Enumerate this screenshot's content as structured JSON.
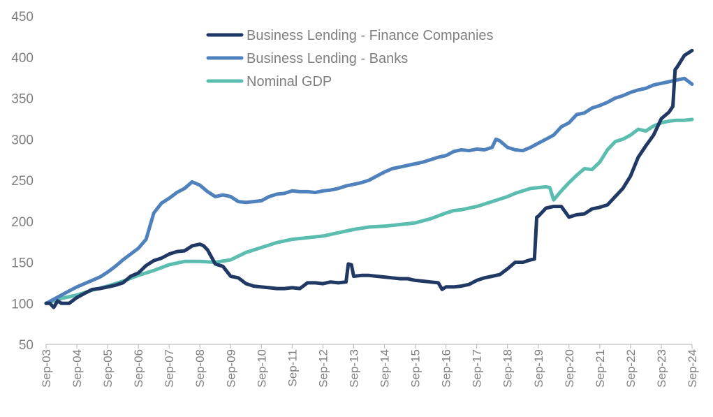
{
  "chart_data": {
    "type": "line",
    "title": "",
    "xlabel": "",
    "ylabel": "",
    "ylim": [
      50,
      450
    ],
    "yticks": [
      50,
      100,
      150,
      200,
      250,
      300,
      350,
      400,
      450
    ],
    "xlim": [
      0,
      84
    ],
    "x_ticks": [
      {
        "label": "Sep-03",
        "x": 0
      },
      {
        "label": "Sep-04",
        "x": 4
      },
      {
        "label": "Sep-05",
        "x": 8
      },
      {
        "label": "Sep-06",
        "x": 12
      },
      {
        "label": "Sep-07",
        "x": 16
      },
      {
        "label": "Sep-08",
        "x": 20
      },
      {
        "label": "Sep-09",
        "x": 24
      },
      {
        "label": "Sep-10",
        "x": 28
      },
      {
        "label": "Sep-11",
        "x": 32
      },
      {
        "label": "Sep-12",
        "x": 36
      },
      {
        "label": "Sep-13",
        "x": 40
      },
      {
        "label": "Sep-14",
        "x": 44
      },
      {
        "label": "Sep-15",
        "x": 48
      },
      {
        "label": "Sep-16",
        "x": 52
      },
      {
        "label": "Sep-17",
        "x": 56
      },
      {
        "label": "Sep-18",
        "x": 60
      },
      {
        "label": "Sep-19",
        "x": 64
      },
      {
        "label": "Sep-20",
        "x": 68
      },
      {
        "label": "Sep-21",
        "x": 72
      },
      {
        "label": "Sep-22",
        "x": 76
      },
      {
        "label": "Sep-23",
        "x": 80
      },
      {
        "label": "Sep-24",
        "x": 84
      }
    ],
    "legend_position": "top-center",
    "series": [
      {
        "name": "Business Lending - Finance Companies",
        "color": "#1f3864",
        "points": [
          [
            0,
            100
          ],
          [
            0.5,
            100
          ],
          [
            1,
            95
          ],
          [
            1.5,
            103
          ],
          [
            2,
            100
          ],
          [
            3,
            100
          ],
          [
            4,
            107
          ],
          [
            5,
            112
          ],
          [
            6,
            117
          ],
          [
            7,
            118
          ],
          [
            8,
            120
          ],
          [
            9,
            122
          ],
          [
            10,
            125
          ],
          [
            11,
            133
          ],
          [
            12,
            137
          ],
          [
            13,
            146
          ],
          [
            14,
            152
          ],
          [
            15,
            155
          ],
          [
            16,
            160
          ],
          [
            17,
            163
          ],
          [
            18,
            164
          ],
          [
            19,
            170
          ],
          [
            20,
            172
          ],
          [
            20.5,
            170
          ],
          [
            21,
            165
          ],
          [
            22,
            148
          ],
          [
            23,
            145
          ],
          [
            24,
            133
          ],
          [
            25,
            131
          ],
          [
            26,
            124
          ],
          [
            27,
            121
          ],
          [
            28,
            120
          ],
          [
            29,
            119
          ],
          [
            30,
            118
          ],
          [
            31,
            118
          ],
          [
            32,
            119
          ],
          [
            33,
            118
          ],
          [
            34,
            125
          ],
          [
            35,
            125
          ],
          [
            36,
            124
          ],
          [
            37,
            126
          ],
          [
            38,
            125
          ],
          [
            39,
            126
          ],
          [
            39.3,
            148
          ],
          [
            39.7,
            147
          ],
          [
            40,
            133
          ],
          [
            41,
            134
          ],
          [
            42,
            134
          ],
          [
            43,
            133
          ],
          [
            44,
            132
          ],
          [
            45,
            131
          ],
          [
            46,
            130
          ],
          [
            47,
            130
          ],
          [
            48,
            128
          ],
          [
            49,
            127
          ],
          [
            50,
            126
          ],
          [
            51,
            125
          ],
          [
            51.5,
            117
          ],
          [
            52,
            120
          ],
          [
            53,
            120
          ],
          [
            54,
            121
          ],
          [
            55,
            123
          ],
          [
            56,
            128
          ],
          [
            57,
            131
          ],
          [
            58,
            133
          ],
          [
            59,
            135
          ],
          [
            60,
            142
          ],
          [
            61,
            150
          ],
          [
            62,
            150
          ],
          [
            63,
            153
          ],
          [
            63.5,
            154
          ],
          [
            63.8,
            205
          ],
          [
            64,
            206
          ],
          [
            65,
            216
          ],
          [
            66,
            218
          ],
          [
            67,
            218
          ],
          [
            68,
            205
          ],
          [
            69,
            208
          ],
          [
            70,
            209
          ],
          [
            71,
            215
          ],
          [
            72,
            217
          ],
          [
            73,
            220
          ],
          [
            74,
            230
          ],
          [
            75,
            240
          ],
          [
            76,
            255
          ],
          [
            77,
            278
          ],
          [
            78,
            292
          ],
          [
            79,
            305
          ],
          [
            80,
            325
          ],
          [
            81,
            333
          ],
          [
            81.5,
            340
          ],
          [
            81.8,
            385
          ],
          [
            82,
            387
          ],
          [
            83,
            402
          ],
          [
            84,
            408
          ]
        ]
      },
      {
        "name": "Business Lending - Banks",
        "color": "#4f81bd",
        "points": [
          [
            0,
            100
          ],
          [
            1,
            105
          ],
          [
            2,
            110
          ],
          [
            3,
            115
          ],
          [
            4,
            120
          ],
          [
            5,
            124
          ],
          [
            6,
            128
          ],
          [
            7,
            132
          ],
          [
            8,
            138
          ],
          [
            9,
            145
          ],
          [
            10,
            153
          ],
          [
            11,
            160
          ],
          [
            12,
            167
          ],
          [
            13,
            178
          ],
          [
            14,
            210
          ],
          [
            15,
            222
          ],
          [
            16,
            228
          ],
          [
            17,
            235
          ],
          [
            18,
            240
          ],
          [
            19,
            248
          ],
          [
            20,
            244
          ],
          [
            21,
            236
          ],
          [
            22,
            230
          ],
          [
            23,
            232
          ],
          [
            24,
            230
          ],
          [
            25,
            224
          ],
          [
            26,
            223
          ],
          [
            27,
            224
          ],
          [
            28,
            225
          ],
          [
            29,
            230
          ],
          [
            30,
            233
          ],
          [
            31,
            234
          ],
          [
            32,
            237
          ],
          [
            33,
            236
          ],
          [
            34,
            236
          ],
          [
            35,
            235
          ],
          [
            36,
            237
          ],
          [
            37,
            238
          ],
          [
            38,
            240
          ],
          [
            39,
            243
          ],
          [
            40,
            245
          ],
          [
            41,
            247
          ],
          [
            42,
            250
          ],
          [
            43,
            255
          ],
          [
            44,
            260
          ],
          [
            45,
            264
          ],
          [
            46,
            266
          ],
          [
            47,
            268
          ],
          [
            48,
            270
          ],
          [
            49,
            272
          ],
          [
            50,
            275
          ],
          [
            51,
            278
          ],
          [
            52,
            280
          ],
          [
            53,
            285
          ],
          [
            54,
            287
          ],
          [
            55,
            286
          ],
          [
            56,
            288
          ],
          [
            57,
            287
          ],
          [
            58,
            290
          ],
          [
            58.5,
            300
          ],
          [
            59,
            298
          ],
          [
            60,
            290
          ],
          [
            61,
            287
          ],
          [
            62,
            286
          ],
          [
            63,
            290
          ],
          [
            64,
            295
          ],
          [
            65,
            300
          ],
          [
            66,
            305
          ],
          [
            67,
            315
          ],
          [
            68,
            320
          ],
          [
            69,
            330
          ],
          [
            70,
            332
          ],
          [
            71,
            338
          ],
          [
            72,
            341
          ],
          [
            73,
            345
          ],
          [
            74,
            350
          ],
          [
            75,
            353
          ],
          [
            76,
            357
          ],
          [
            77,
            360
          ],
          [
            78,
            362
          ],
          [
            79,
            366
          ],
          [
            80,
            368
          ],
          [
            81,
            370
          ],
          [
            82,
            372
          ],
          [
            83,
            374
          ],
          [
            84,
            367
          ]
        ]
      },
      {
        "name": "Nominal GDP",
        "color": "#5bbcb0",
        "points": [
          [
            0,
            100
          ],
          [
            2,
            106
          ],
          [
            4,
            110
          ],
          [
            6,
            116
          ],
          [
            8,
            121
          ],
          [
            10,
            127
          ],
          [
            12,
            134
          ],
          [
            14,
            140
          ],
          [
            16,
            147
          ],
          [
            18,
            151
          ],
          [
            20,
            151
          ],
          [
            22,
            150
          ],
          [
            24,
            153
          ],
          [
            26,
            162
          ],
          [
            28,
            168
          ],
          [
            30,
            174
          ],
          [
            32,
            178
          ],
          [
            34,
            180
          ],
          [
            36,
            182
          ],
          [
            38,
            186
          ],
          [
            40,
            190
          ],
          [
            42,
            193
          ],
          [
            44,
            194
          ],
          [
            46,
            196
          ],
          [
            48,
            198
          ],
          [
            50,
            203
          ],
          [
            52,
            210
          ],
          [
            53,
            213
          ],
          [
            54,
            214
          ],
          [
            56,
            218
          ],
          [
            58,
            224
          ],
          [
            60,
            230
          ],
          [
            61,
            234
          ],
          [
            62,
            237
          ],
          [
            63,
            240
          ],
          [
            64,
            241
          ],
          [
            65,
            242
          ],
          [
            65.5,
            241
          ],
          [
            66,
            226
          ],
          [
            67,
            237
          ],
          [
            68,
            247
          ],
          [
            69,
            256
          ],
          [
            70,
            264
          ],
          [
            71,
            263
          ],
          [
            72,
            272
          ],
          [
            73,
            287
          ],
          [
            74,
            297
          ],
          [
            75,
            300
          ],
          [
            76,
            305
          ],
          [
            77,
            312
          ],
          [
            78,
            310
          ],
          [
            79,
            316
          ],
          [
            80,
            320
          ],
          [
            81,
            322
          ],
          [
            82,
            323
          ],
          [
            83,
            323
          ],
          [
            84,
            324
          ]
        ]
      }
    ]
  }
}
